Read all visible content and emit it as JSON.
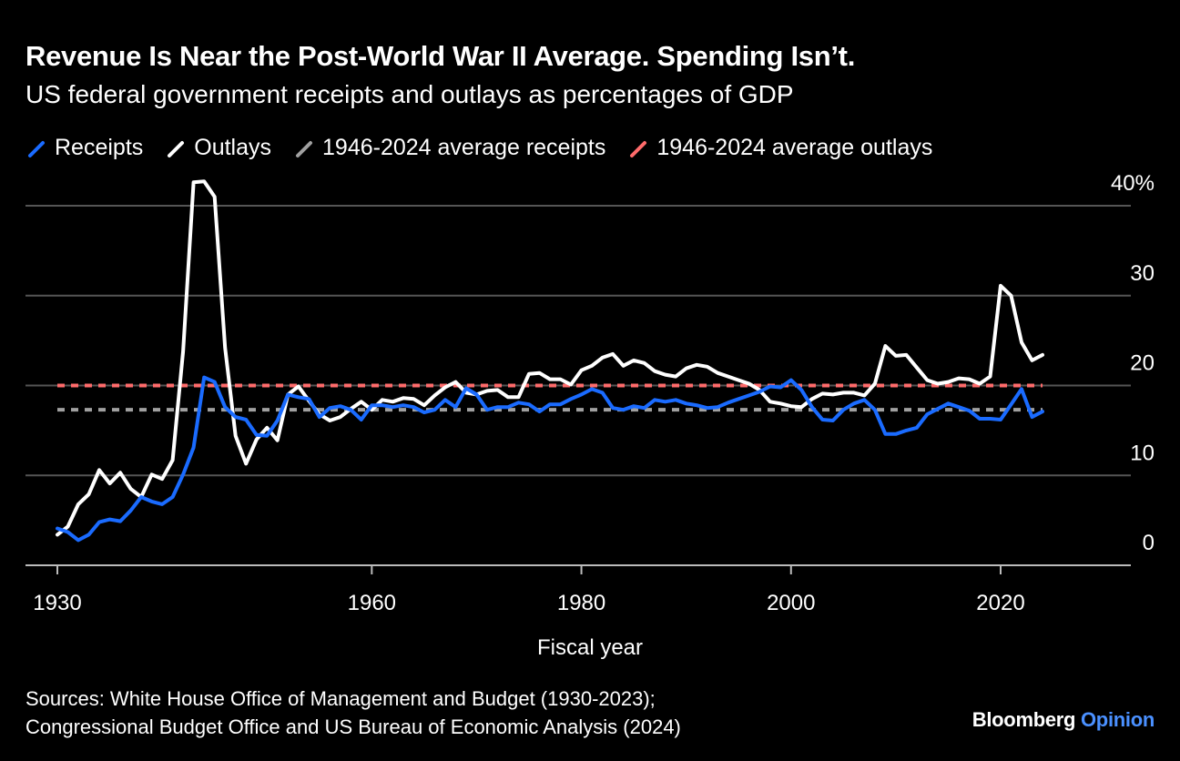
{
  "title": "Revenue Is Near the Post-World War II Average. Spending Isn’t.",
  "subtitle": "US federal government receipts and outlays as percentages of GDP",
  "legend": [
    {
      "label": "Receipts",
      "color": "#1a6bff",
      "style": "solid"
    },
    {
      "label": "Outlays",
      "color": "#ffffff",
      "style": "solid"
    },
    {
      "label": "1946-2024 average receipts",
      "color": "#a0a0a0",
      "style": "dashed"
    },
    {
      "label": "1946-2024 average outlays",
      "color": "#ff6b6b",
      "style": "dashed"
    }
  ],
  "source_lines": [
    "Sources: White House Office of Management and Budget (1930-2023);",
    "Congressional Budget Office and US Bureau of Economic Analysis (2024)"
  ],
  "brand": {
    "name": "Bloomberg",
    "accent": "Opinion"
  },
  "chart_data": {
    "type": "line",
    "xlabel": "Fiscal year",
    "ylabel": "",
    "xlim": [
      1929,
      2031
    ],
    "ylim": [
      0,
      40
    ],
    "x_ticks": [
      1930,
      1960,
      1980,
      2000,
      2020
    ],
    "y_ticks": [
      0,
      10,
      20,
      30,
      40
    ],
    "y_tick_labels": [
      "0",
      "10",
      "20",
      "30",
      "40%"
    ],
    "grid": "horizontal",
    "legend_position": "top",
    "x": [
      1930,
      1931,
      1932,
      1933,
      1934,
      1935,
      1936,
      1937,
      1938,
      1939,
      1940,
      1941,
      1942,
      1943,
      1944,
      1945,
      1946,
      1947,
      1948,
      1949,
      1950,
      1951,
      1952,
      1953,
      1954,
      1955,
      1956,
      1957,
      1958,
      1959,
      1960,
      1961,
      1962,
      1963,
      1964,
      1965,
      1966,
      1967,
      1968,
      1969,
      1970,
      1971,
      1972,
      1973,
      1974,
      1975,
      1976,
      1977,
      1978,
      1979,
      1980,
      1981,
      1982,
      1983,
      1984,
      1985,
      1986,
      1987,
      1988,
      1989,
      1990,
      1991,
      1992,
      1993,
      1994,
      1995,
      1996,
      1997,
      1998,
      1999,
      2000,
      2001,
      2002,
      2003,
      2004,
      2005,
      2006,
      2007,
      2008,
      2009,
      2010,
      2011,
      2012,
      2013,
      2014,
      2015,
      2016,
      2017,
      2018,
      2019,
      2020,
      2021,
      2022,
      2023,
      2024
    ],
    "series": [
      {
        "name": "Receipts",
        "color": "#1a6bff",
        "values": [
          4.1,
          3.7,
          2.8,
          3.4,
          4.8,
          5.1,
          4.9,
          6.1,
          7.6,
          7.1,
          6.8,
          7.6,
          10.1,
          13.1,
          20.9,
          20.4,
          17.6,
          16.5,
          16.2,
          14.5,
          14.4,
          16.1,
          19.0,
          18.7,
          18.5,
          16.5,
          17.5,
          17.7,
          17.3,
          16.2,
          17.8,
          17.8,
          17.6,
          17.8,
          17.6,
          17.0,
          17.3,
          18.4,
          17.6,
          19.7,
          19.0,
          17.3,
          17.6,
          17.6,
          18.1,
          17.9,
          17.1,
          17.9,
          17.9,
          18.5,
          19.0,
          19.6,
          19.2,
          17.5,
          17.3,
          17.7,
          17.5,
          18.4,
          18.2,
          18.4,
          18.0,
          17.8,
          17.5,
          17.6,
          18.1,
          18.5,
          18.9,
          19.3,
          19.9,
          19.8,
          20.6,
          19.5,
          17.6,
          16.2,
          16.1,
          17.3,
          18.0,
          18.4,
          17.3,
          14.6,
          14.6,
          15.0,
          15.3,
          16.8,
          17.4,
          18.0,
          17.6,
          17.2,
          16.3,
          16.3,
          16.2,
          17.9,
          19.6,
          16.5,
          17.1
        ]
      },
      {
        "name": "Outlays",
        "color": "#ffffff",
        "values": [
          3.4,
          4.3,
          6.8,
          7.9,
          10.6,
          9.1,
          10.3,
          8.5,
          7.6,
          10.1,
          9.6,
          11.7,
          23.8,
          42.6,
          42.7,
          41.0,
          24.2,
          14.4,
          11.3,
          14.0,
          15.3,
          13.9,
          19.0,
          19.9,
          18.3,
          16.8,
          16.1,
          16.5,
          17.4,
          18.2,
          17.3,
          18.4,
          18.2,
          18.6,
          18.5,
          17.8,
          18.9,
          19.8,
          20.4,
          19.2,
          19.0,
          19.4,
          19.5,
          18.7,
          18.7,
          21.3,
          21.4,
          20.7,
          20.7,
          20.1,
          21.7,
          22.2,
          23.1,
          23.5,
          22.2,
          22.8,
          22.5,
          21.6,
          21.2,
          21.0,
          21.9,
          22.3,
          22.1,
          21.4,
          21.0,
          20.6,
          20.2,
          19.5,
          18.2,
          18.0,
          17.7,
          17.6,
          18.5,
          19.1,
          19.0,
          19.2,
          19.2,
          18.9,
          20.2,
          24.4,
          23.3,
          23.4,
          22.0,
          20.6,
          20.2,
          20.4,
          20.8,
          20.7,
          20.2,
          21.0,
          31.1,
          30.0,
          24.8,
          22.8,
          23.4
        ]
      },
      {
        "name": "1946-2024 average receipts",
        "color": "#a0a0a0",
        "dashed": true,
        "value": 17.3,
        "range": [
          1930,
          2024
        ]
      },
      {
        "name": "1946-2024 average outlays",
        "color": "#ff6b6b",
        "dashed": true,
        "value": 20.0,
        "range": [
          1930,
          2024
        ]
      }
    ]
  }
}
